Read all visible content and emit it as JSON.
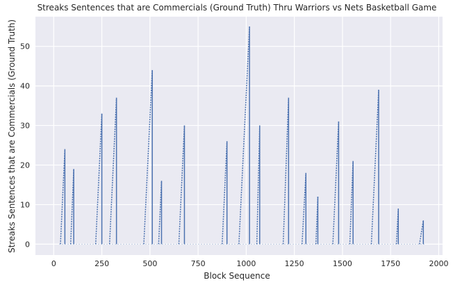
{
  "chart_data": {
    "type": "line",
    "title": "Streaks Sentences that are Commercials (Ground Truth)  Thru Warriors vs Nets Basketball Game",
    "xlabel": "Block Sequence",
    "ylabel": "Streaks Sentences that are Commercials (Ground Truth)",
    "xlim": [
      -95,
      2020
    ],
    "ylim": [
      -2.75,
      57.5
    ],
    "xticks": [
      0,
      250,
      500,
      750,
      1000,
      1250,
      1500,
      1750,
      2000
    ],
    "yticks": [
      0,
      10,
      20,
      30,
      40,
      50
    ],
    "grid": true,
    "background": "#eaeaf2",
    "line_color": "#4c72b0",
    "streaks": [
      {
        "start": 35,
        "end": 58,
        "peak": 24
      },
      {
        "start": 88,
        "end": 104,
        "peak": 19
      },
      {
        "start": 218,
        "end": 250,
        "peak": 33
      },
      {
        "start": 290,
        "end": 326,
        "peak": 37
      },
      {
        "start": 468,
        "end": 512,
        "peak": 44
      },
      {
        "start": 545,
        "end": 560,
        "peak": 16
      },
      {
        "start": 650,
        "end": 679,
        "peak": 30
      },
      {
        "start": 875,
        "end": 900,
        "peak": 26
      },
      {
        "start": 962,
        "end": 1017,
        "peak": 55
      },
      {
        "start": 1055,
        "end": 1070,
        "peak": 30
      },
      {
        "start": 1192,
        "end": 1220,
        "peak": 37
      },
      {
        "start": 1290,
        "end": 1310,
        "peak": 18
      },
      {
        "start": 1362,
        "end": 1372,
        "peak": 12
      },
      {
        "start": 1450,
        "end": 1480,
        "peak": 31
      },
      {
        "start": 1538,
        "end": 1555,
        "peak": 21
      },
      {
        "start": 1650,
        "end": 1688,
        "peak": 39
      },
      {
        "start": 1780,
        "end": 1790,
        "peak": 9
      },
      {
        "start": 1900,
        "end": 1920,
        "peak": 6
      }
    ]
  }
}
